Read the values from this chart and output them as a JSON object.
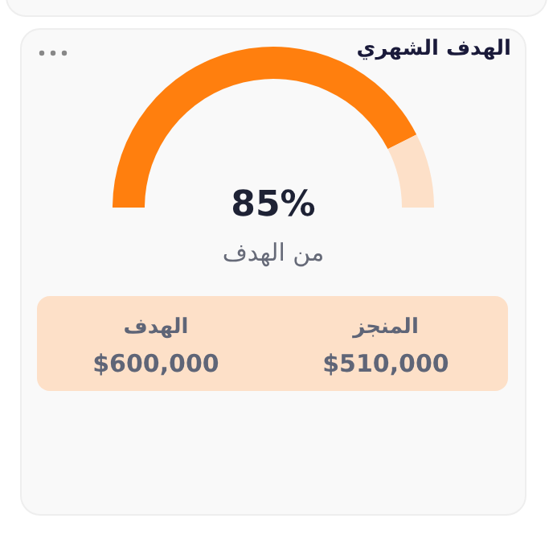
{
  "chart_data": {
    "type": "donut",
    "title": "الهدف الشهري",
    "categories": [
      null,
      null
    ],
    "values": [
      85,
      15
    ],
    "colors": [
      "#ff7f0e",
      "#fde0c8"
    ],
    "value_labels": [
      "85%",
      null
    ],
    "annotations": [
      "من الهدف",
      "المنجز",
      "$510,000",
      "الهدف",
      "$600,000"
    ]
  }
}
